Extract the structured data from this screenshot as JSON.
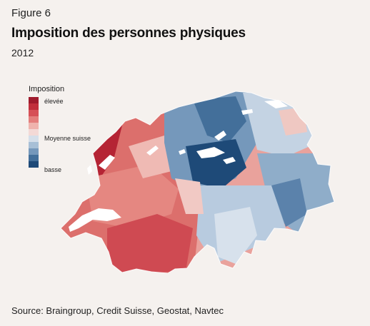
{
  "figure_label": "Figure 6",
  "title": "Imposition des personnes physiques",
  "year": "2012",
  "legend": {
    "title": "Imposition",
    "high_label": "élevée",
    "mid_label": "Moyenne suisse",
    "low_label": "basse",
    "colors": [
      "#9f1b2d",
      "#c12f3c",
      "#d64f56",
      "#e47e7c",
      "#efb3ad",
      "#f3d9d6",
      "#d5dfea",
      "#a7bfd6",
      "#7598bb",
      "#436f9a",
      "#1e4a78"
    ]
  },
  "map": {
    "high_color": "#c12f3c",
    "low_color": "#1e4a78",
    "lake_color": "#ffffff"
  },
  "source": "Source: Braingroup, Credit Suisse, Geostat, Navtec"
}
